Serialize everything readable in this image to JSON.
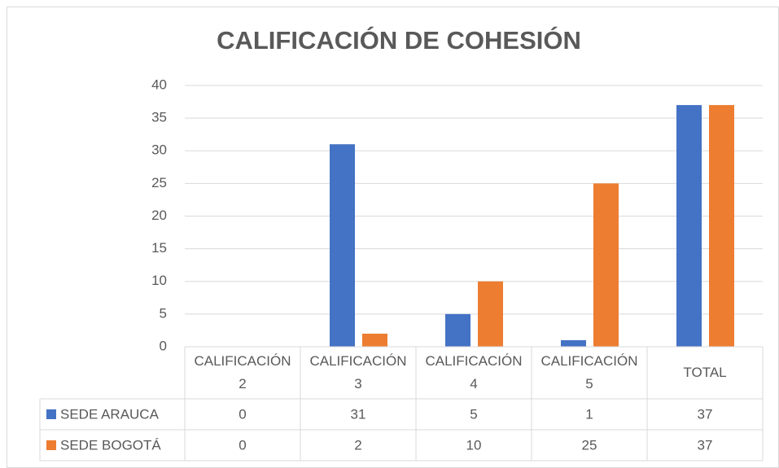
{
  "chart_data": {
    "type": "bar",
    "title": "CALIFICACIÓN DE COHESIÓN",
    "categories": [
      "CALIFICACIÓN 2",
      "CALIFICACIÓN 3",
      "CALIFICACIÓN 4",
      "CALIFICACIÓN 5",
      "TOTAL"
    ],
    "series": [
      {
        "name": "SEDE ARAUCA",
        "color": "#4472c4",
        "values": [
          0,
          31,
          5,
          1,
          37
        ]
      },
      {
        "name": "SEDE BOGOTÁ",
        "color": "#ed7d31",
        "values": [
          0,
          2,
          10,
          25,
          37
        ]
      }
    ],
    "ylim": [
      0,
      40
    ],
    "yticks": [
      0,
      5,
      10,
      15,
      20,
      25,
      30,
      35,
      40
    ],
    "grid": true,
    "data_table": true
  }
}
